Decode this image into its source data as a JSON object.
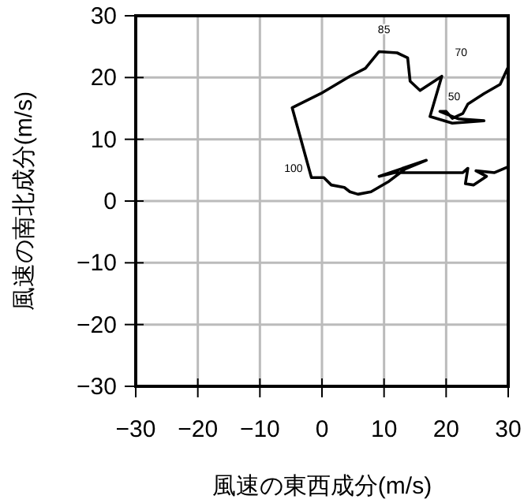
{
  "chart_data": {
    "type": "line",
    "xlabel": "風速の東西成分(m/s)",
    "ylabel": "風速の南北成分(m/s)",
    "xlim": [
      -30,
      30
    ],
    "ylim": [
      -30,
      30
    ],
    "xticks": [
      -30,
      -20,
      -10,
      0,
      10,
      20,
      30
    ],
    "yticks": [
      -30,
      -20,
      -10,
      0,
      10,
      20,
      30
    ],
    "grid": true,
    "marker": "none",
    "line_style": "solid",
    "series": [
      {
        "color": "#000000",
        "x": [
          29.9,
          27.8,
          24.8,
          26.5,
          24.4,
          23.1,
          23.5,
          22.7,
          16.8,
          11.7,
          9.2,
          16.8,
          13.4,
          10.8,
          7.9,
          5.8,
          4.5,
          3.6,
          1.5,
          0.3,
          -1.7,
          -4.8,
          -0.2,
          4.5,
          7,
          9.2,
          12.1,
          13.8,
          14.2,
          15.8,
          19.3,
          17.4,
          21,
          26.1,
          22,
          19,
          20,
          21,
          22.7,
          23.5,
          26.1,
          28.7,
          29.9
        ],
        "values": [
          5.5,
          4.6,
          4.9,
          4,
          2.6,
          2.8,
          5.3,
          4.6,
          4.6,
          4.6,
          4,
          6.6,
          5.2,
          3.2,
          1.5,
          1.1,
          1.5,
          2.2,
          2.6,
          3.8,
          3.8,
          15.1,
          17.4,
          20.2,
          21.5,
          24.2,
          24,
          23.2,
          19.4,
          17.9,
          20.2,
          13.7,
          12.6,
          13,
          13.3,
          14.5,
          14.5,
          13.4,
          14.2,
          15.7,
          17.4,
          18.9,
          21.5
        ]
      }
    ],
    "annotations": [
      "85",
      "70",
      "50",
      "100"
    ]
  }
}
